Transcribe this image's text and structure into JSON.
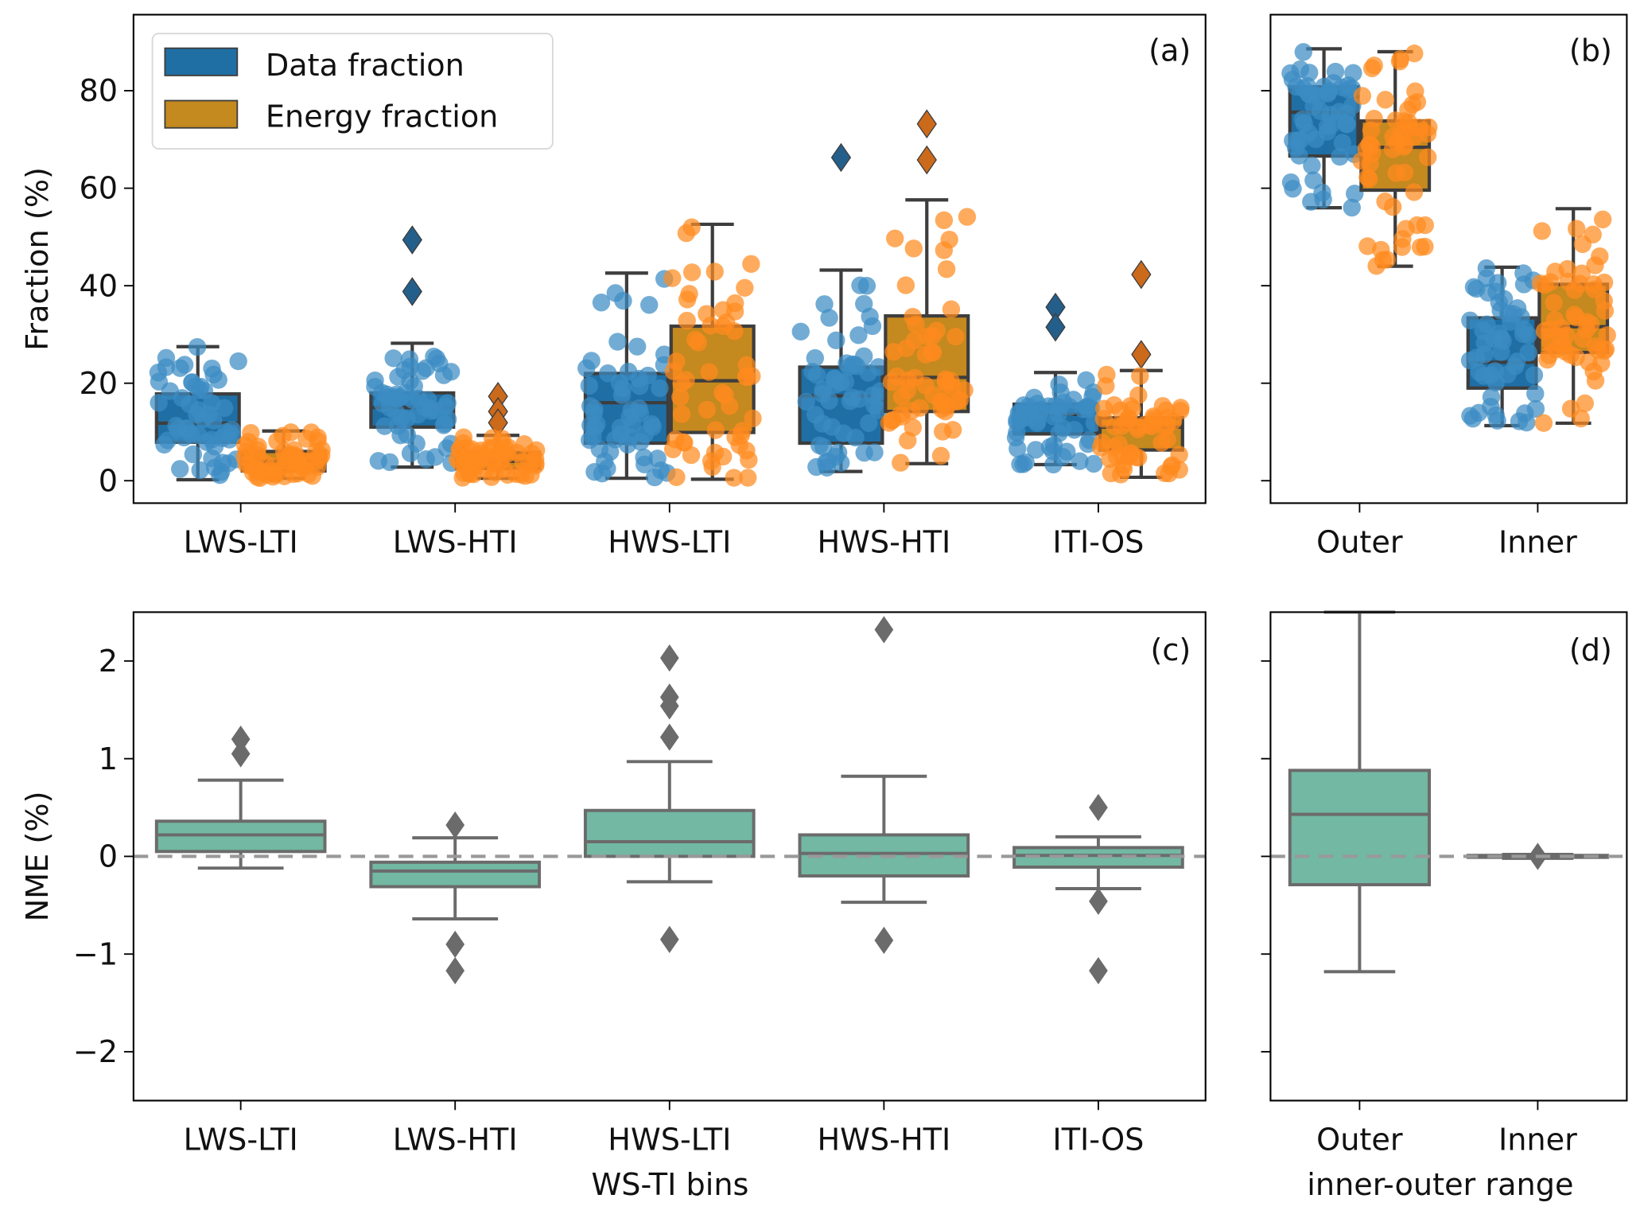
{
  "legend": {
    "entries": [
      {
        "label": "Data fraction",
        "color": "#1f6fa5"
      },
      {
        "label": "Energy fraction",
        "color": "#c4891f"
      }
    ]
  },
  "colors": {
    "data_box": "#1f6fa5",
    "data_point": "#3b8cc4",
    "energy_box": "#c4891f",
    "energy_point": "#ff8a1e",
    "nme_box": "#72b8a2",
    "nme_line": "#6b6b6b",
    "box_line": "#3d3d3d",
    "zero_line": "#999999"
  },
  "chart_data": [
    {
      "panel": "(a)",
      "type": "box",
      "ylabel": "Fraction (%)",
      "xlabel": "",
      "ylim": [
        -4.6,
        95.6
      ],
      "yticks": [
        0,
        20,
        40,
        60,
        80
      ],
      "categories": [
        "LWS-LTI",
        "LWS-HTI",
        "HWS-LTI",
        "HWS-HTI",
        "ITI-OS"
      ],
      "legend_position": "top-left",
      "series": [
        {
          "name": "Data fraction",
          "boxes": [
            {
              "whislo": 0.2,
              "q1": 7.9,
              "med": 11.8,
              "q3": 17.8,
              "whishi": 27.5,
              "fliers": []
            },
            {
              "whislo": 2.8,
              "q1": 11.0,
              "med": 15.0,
              "q3": 18.0,
              "whishi": 28.2,
              "fliers": [
                49.4,
                38.8
              ]
            },
            {
              "whislo": 0.5,
              "q1": 7.7,
              "med": 16.0,
              "q3": 22.0,
              "whishi": 42.6,
              "fliers": []
            },
            {
              "whislo": 1.9,
              "q1": 7.7,
              "med": 17.4,
              "q3": 23.3,
              "whishi": 43.2,
              "fliers": [
                66.3
              ]
            },
            {
              "whislo": 3.3,
              "q1": 9.6,
              "med": 13.6,
              "q3": 15.7,
              "whishi": 22.2,
              "fliers": [
                35.6,
                31.5
              ]
            }
          ]
        },
        {
          "name": "Energy fraction",
          "boxes": [
            {
              "whislo": 0.5,
              "q1": 2.0,
              "med": 4.0,
              "q3": 6.0,
              "whishi": 10.2,
              "fliers": []
            },
            {
              "whislo": 0.5,
              "q1": 2.5,
              "med": 4.0,
              "q3": 5.8,
              "whishi": 9.3,
              "fliers": [
                17.3,
                14.2,
                11.9
              ]
            },
            {
              "whislo": 0.3,
              "q1": 9.9,
              "med": 20.5,
              "q3": 31.7,
              "whishi": 52.6,
              "fliers": []
            },
            {
              "whislo": 3.5,
              "q1": 14.2,
              "med": 21.2,
              "q3": 33.8,
              "whishi": 57.6,
              "fliers": [
                73.2,
                65.8
              ]
            },
            {
              "whislo": 0.7,
              "q1": 6.3,
              "med": 11.0,
              "q3": 12.9,
              "whishi": 22.6,
              "fliers": [
                42.3,
                25.9
              ]
            }
          ]
        }
      ]
    },
    {
      "panel": "(b)",
      "type": "box",
      "ylabel": "",
      "xlabel": "",
      "ylim": [
        -4.6,
        95.6
      ],
      "yticks": [
        0,
        20,
        40,
        60,
        80
      ],
      "categories": [
        "Outer",
        "Inner"
      ],
      "series": [
        {
          "name": "Data fraction",
          "boxes": [
            {
              "whislo": 56.0,
              "q1": 66.6,
              "med": 75.6,
              "q3": 80.8,
              "whishi": 88.6,
              "fliers": []
            },
            {
              "whislo": 11.3,
              "q1": 19.0,
              "med": 24.3,
              "q3": 33.4,
              "whishi": 43.8,
              "fliers": []
            }
          ]
        },
        {
          "name": "Energy fraction",
          "boxes": [
            {
              "whislo": 44.0,
              "q1": 59.6,
              "med": 68.4,
              "q3": 73.8,
              "whishi": 88.0,
              "fliers": []
            },
            {
              "whislo": 11.8,
              "q1": 26.3,
              "med": 31.6,
              "q3": 40.3,
              "whishi": 55.8,
              "fliers": []
            }
          ]
        }
      ]
    },
    {
      "panel": "(c)",
      "type": "box",
      "ylabel": "NME (%)",
      "xlabel": "WS-TI bins",
      "ylim": [
        -2.5,
        2.5
      ],
      "yticks": [
        -2,
        -1,
        0,
        1,
        2
      ],
      "categories": [
        "LWS-LTI",
        "LWS-HTI",
        "HWS-LTI",
        "HWS-HTI",
        "ITI-OS"
      ],
      "reference_line": 0,
      "series": [
        {
          "name": "NME",
          "boxes": [
            {
              "whislo": -0.12,
              "q1": 0.05,
              "med": 0.22,
              "q3": 0.36,
              "whishi": 0.78,
              "fliers": [
                1.2,
                1.05
              ]
            },
            {
              "whislo": -0.64,
              "q1": -0.31,
              "med": -0.15,
              "q3": -0.06,
              "whishi": 0.19,
              "fliers": [
                0.32,
                -0.9,
                -1.17
              ]
            },
            {
              "whislo": -0.26,
              "q1": 0.0,
              "med": 0.15,
              "q3": 0.47,
              "whishi": 0.97,
              "fliers": [
                2.03,
                1.63,
                1.54,
                1.22,
                -0.85
              ]
            },
            {
              "whislo": -0.47,
              "q1": -0.2,
              "med": 0.03,
              "q3": 0.22,
              "whishi": 0.82,
              "fliers": [
                2.32,
                -0.86
              ]
            },
            {
              "whislo": -0.33,
              "q1": -0.11,
              "med": 0.01,
              "q3": 0.09,
              "whishi": 0.2,
              "fliers": [
                0.5,
                -0.46,
                -1.17
              ]
            }
          ]
        }
      ]
    },
    {
      "panel": "(d)",
      "type": "box",
      "ylabel": "",
      "xlabel": "inner-outer range",
      "ylim": [
        -2.5,
        2.5
      ],
      "yticks": [
        -2,
        -1,
        0,
        1,
        2
      ],
      "categories": [
        "Outer",
        "Inner"
      ],
      "reference_line": 0,
      "series": [
        {
          "name": "NME",
          "boxes": [
            {
              "whislo": -1.18,
              "q1": -0.29,
              "med": 0.43,
              "q3": 0.88,
              "whishi": 2.5,
              "fliers": []
            },
            {
              "whislo": -0.02,
              "q1": -0.01,
              "med": 0.0,
              "q3": 0.01,
              "whishi": 0.02,
              "fliers": [
                0.0
              ]
            }
          ]
        }
      ]
    }
  ]
}
